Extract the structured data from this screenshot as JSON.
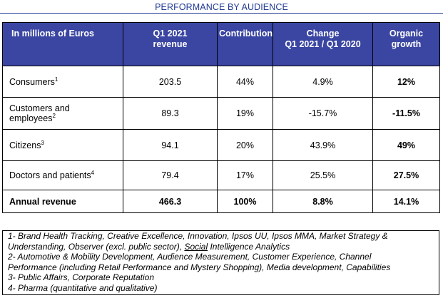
{
  "title": "PERFORMANCE BY AUDIENCE",
  "colors": {
    "header_bg": "#3b46a2",
    "title": "#1f3a93"
  },
  "table": {
    "headers": {
      "label": "In millions of Euros",
      "revenue": [
        "Q1 2021",
        "revenue"
      ],
      "contribution": "Contribution",
      "change": [
        "Change",
        "Q1 2021 / Q1 2020"
      ],
      "organic": [
        "Organic",
        "growth"
      ]
    },
    "rows": [
      {
        "label": "Consumers",
        "note": "1",
        "revenue": "203.5",
        "contribution": "44%",
        "change": "4.9%",
        "organic": "12%"
      },
      {
        "label_line1": "Customers and",
        "label_line2": "employees",
        "note": "2",
        "revenue": "89.3",
        "contribution": "19%",
        "change": "-15.7%",
        "organic": "-11.5%"
      },
      {
        "label": "Citizens",
        "note": "3",
        "revenue": "94.1",
        "contribution": "20%",
        "change": "43.9%",
        "organic": "49%"
      },
      {
        "label": "Doctors and patients",
        "note": "4",
        "revenue": "79.4",
        "contribution": "17%",
        "change": "25.5%",
        "organic": "27.5%"
      }
    ],
    "total": {
      "label": "Annual revenue",
      "revenue": "466.3",
      "contribution": "100%",
      "change": "8.8%",
      "organic": "14.1%"
    }
  },
  "notes": {
    "n1_line1": "1- Brand Health Tracking, Creative Excellence, Innovation, Ipsos UU, Ipsos MMA, Market Strategy &",
    "n1_line2_a": "Understanding, Observer (excl. public sector), ",
    "n1_line2_b": "Social",
    "n1_line2_c": " Intelligence Analytics",
    "n2_line1": "2- Automotive & Mobility Development, Audience Measurement, Customer Experience, Channel",
    "n2_line2": "Performance (including Retail Performance and Mystery Shopping), Media development, Capabilities",
    "n3": "3- Public Affairs, Corporate Reputation",
    "n4": "4- Pharma (quantitative and qualitative)"
  }
}
